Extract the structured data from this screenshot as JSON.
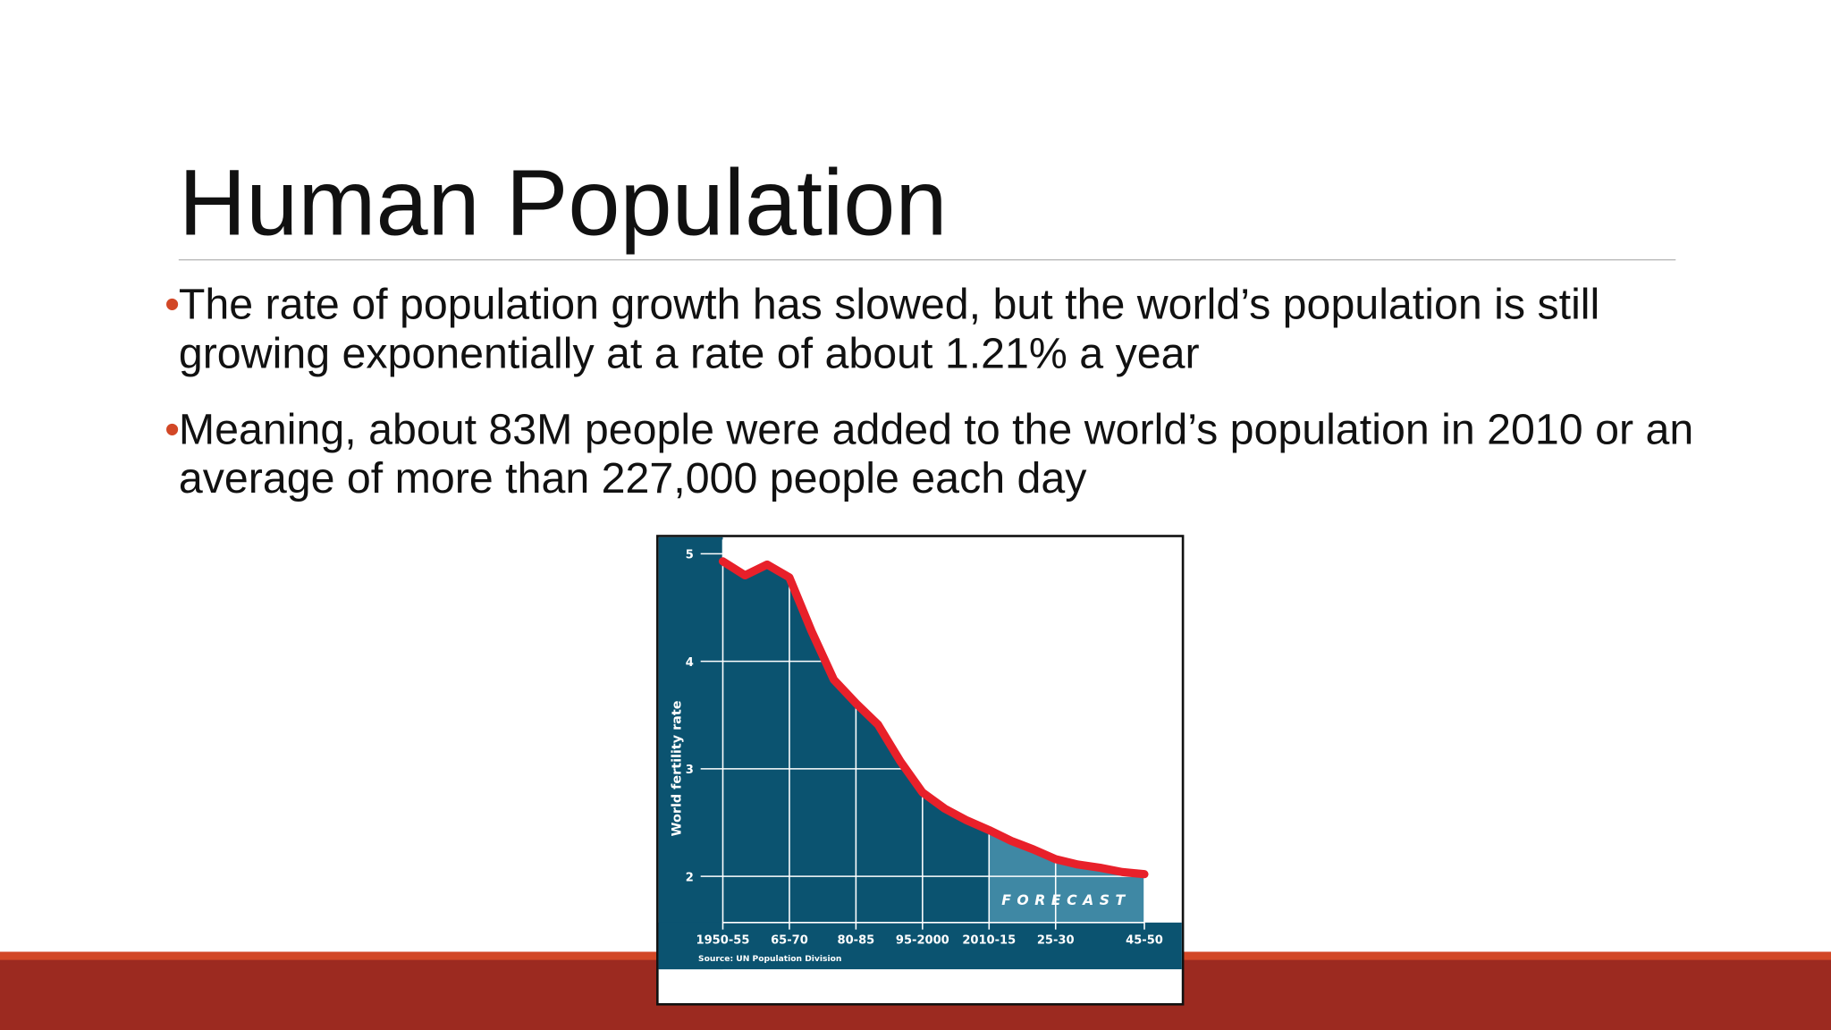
{
  "slide": {
    "title": "Human Population",
    "bullets": [
      "The rate of population growth has slowed, but the world’s population is still growing exponentially at a rate of about 1.21% a year",
      "Meaning, about 83M people were added to the world’s population in 2010 or an average of more than 227,000 people each day"
    ]
  },
  "chart_data": {
    "type": "line",
    "y_label": "World fertility rate",
    "annotation": "FORECAST",
    "source": "Source: UN Population Division",
    "categories": [
      "1950-55",
      null,
      null,
      "65-70",
      null,
      null,
      "80-85",
      null,
      null,
      "95-2000",
      null,
      null,
      "2010-15",
      null,
      null,
      "25-30",
      null,
      null,
      null,
      "45-50"
    ],
    "values": [
      4.93,
      4.8,
      4.9,
      4.78,
      4.28,
      3.83,
      3.61,
      3.41,
      3.07,
      2.78,
      2.63,
      2.52,
      2.43,
      2.33,
      2.25,
      2.16,
      2.11,
      2.08,
      2.04,
      2.02
    ],
    "color": "#e8202a",
    "ylim": [
      1.57,
      5.16
    ],
    "yticks": [
      2,
      3,
      4,
      5
    ],
    "grid": true
  }
}
